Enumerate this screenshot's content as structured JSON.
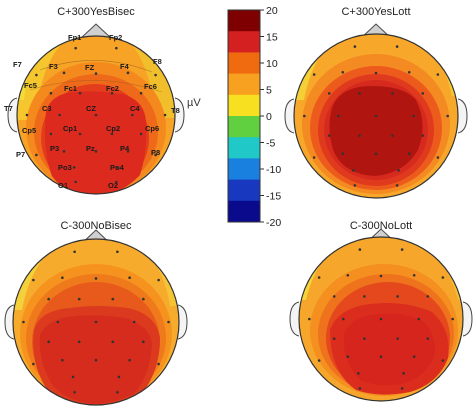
{
  "maps": [
    {
      "title": "C+300YesBisec"
    },
    {
      "title": "C+300YesLott"
    },
    {
      "title": "C-300NoBisec"
    },
    {
      "title": "C-300NoLott"
    }
  ],
  "electrodes": [
    "Fp1",
    "Fp2",
    "F7",
    "F3",
    "FZ",
    "F4",
    "F8",
    "Fc5",
    "Fc1",
    "Fc2",
    "Fc6",
    "T7",
    "C3",
    "CZ",
    "C4",
    "T8",
    "Cp5",
    "Cp1",
    "Cp2",
    "Cp6",
    "P7",
    "P3",
    "Pz",
    "P4",
    "P8",
    "Po3",
    "Po4",
    "O1",
    "O2"
  ],
  "colorbar": {
    "unit": "µV",
    "ticks": [
      "20",
      "15",
      "10",
      "5",
      "0",
      "-5",
      "-10",
      "-15",
      "-20"
    ],
    "colors": [
      "#7f0000",
      "#d42020",
      "#f06a10",
      "#f8a020",
      "#f6e020",
      "#60d040",
      "#20c8c8",
      "#1a80e0",
      "#1838c0",
      "#0a0a8c"
    ]
  }
}
